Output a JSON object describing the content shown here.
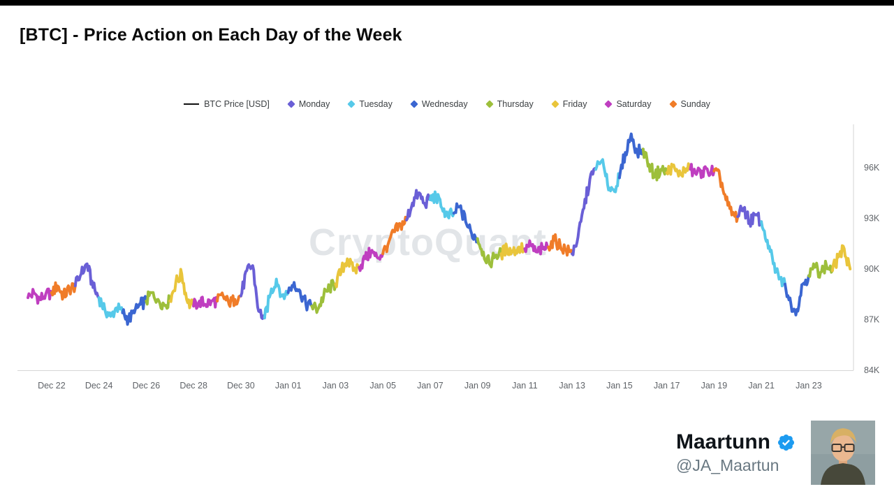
{
  "title": "[BTC] - Price Action on Each Day of the Week",
  "legend": {
    "price_label": "BTC Price [USD]",
    "price_line_color": "#111111",
    "days": [
      {
        "label": "Monday",
        "color": "#6A5FD6"
      },
      {
        "label": "Tuesday",
        "color": "#56C9E9"
      },
      {
        "label": "Wednesday",
        "color": "#3B66D1"
      },
      {
        "label": "Thursday",
        "color": "#9DBF3B"
      },
      {
        "label": "Friday",
        "color": "#E9C53B"
      },
      {
        "label": "Saturday",
        "color": "#BF3EC0"
      },
      {
        "label": "Sunday",
        "color": "#F07C28"
      }
    ]
  },
  "watermark": "CryptoQuant",
  "attribution": {
    "name": "Maartunn",
    "handle": "@JA_Maartun",
    "verified_color": "#1d9bf0"
  },
  "chart_data": {
    "type": "line",
    "title": "[BTC] - Price Action on Each Day of the Week",
    "ylabel": "BTC Price [USD]",
    "unit": "USD (thousands)",
    "ylim": [
      84,
      99
    ],
    "grid": false,
    "legend_position": "top",
    "noise_amplitude": 0.38,
    "y_ticks": [
      {
        "label": "96K",
        "value": 96
      },
      {
        "label": "93K",
        "value": 93
      },
      {
        "label": "90K",
        "value": 90
      },
      {
        "label": "87K",
        "value": 87
      },
      {
        "label": "84K",
        "value": 84
      }
    ],
    "x_ticks": [
      {
        "label": "Dec 22",
        "day_index": 1
      },
      {
        "label": "Dec 24",
        "day_index": 3
      },
      {
        "label": "Dec 26",
        "day_index": 5
      },
      {
        "label": "Dec 28",
        "day_index": 7
      },
      {
        "label": "Dec 30",
        "day_index": 9
      },
      {
        "label": "Jan 01",
        "day_index": 11
      },
      {
        "label": "Jan 03",
        "day_index": 13
      },
      {
        "label": "Jan 05",
        "day_index": 15
      },
      {
        "label": "Jan 07",
        "day_index": 17
      },
      {
        "label": "Jan 09",
        "day_index": 19
      },
      {
        "label": "Jan 11",
        "day_index": 21
      },
      {
        "label": "Jan 13",
        "day_index": 23
      },
      {
        "label": "Jan 15",
        "day_index": 25
      },
      {
        "label": "Jan 17",
        "day_index": 27
      },
      {
        "label": "Jan 19",
        "day_index": 29
      },
      {
        "label": "Jan 21",
        "day_index": 31
      },
      {
        "label": "Jan 23",
        "day_index": 33
      }
    ],
    "points_per_day_hours": [
      0,
      6,
      12,
      18
    ],
    "days": [
      {
        "date": "Dec 21",
        "dow": "Saturday",
        "values": [
          88.3,
          88.6,
          88.2,
          88.5
        ]
      },
      {
        "date": "Dec 22",
        "dow": "Sunday",
        "values": [
          88.6,
          89.0,
          88.4,
          88.8
        ]
      },
      {
        "date": "Dec 23",
        "dow": "Monday",
        "values": [
          89.0,
          89.7,
          90.3,
          88.9
        ]
      },
      {
        "date": "Dec 24",
        "dow": "Tuesday",
        "values": [
          88.3,
          87.6,
          87.2,
          87.7
        ]
      },
      {
        "date": "Dec 25",
        "dow": "Wednesday",
        "values": [
          87.4,
          87.0,
          87.4,
          87.9
        ]
      },
      {
        "date": "Dec 26",
        "dow": "Thursday",
        "values": [
          88.1,
          88.6,
          88.2,
          87.9
        ]
      },
      {
        "date": "Dec 27",
        "dow": "Friday",
        "values": [
          88.1,
          89.2,
          89.7,
          88.0
        ]
      },
      {
        "date": "Dec 28",
        "dow": "Saturday",
        "values": [
          87.8,
          88.1,
          87.9,
          88.1
        ]
      },
      {
        "date": "Dec 29",
        "dow": "Sunday",
        "values": [
          88.1,
          88.4,
          87.9,
          88.2
        ]
      },
      {
        "date": "Dec 30",
        "dow": "Monday",
        "values": [
          88.4,
          89.9,
          90.2,
          87.5
        ]
      },
      {
        "date": "Dec 31",
        "dow": "Tuesday",
        "values": [
          87.1,
          88.5,
          89.4,
          88.4
        ]
      },
      {
        "date": "Jan 01",
        "dow": "Wednesday",
        "values": [
          88.6,
          89.2,
          88.7,
          87.9
        ]
      },
      {
        "date": "Jan 02",
        "dow": "Thursday",
        "values": [
          87.8,
          87.6,
          88.4,
          88.9
        ]
      },
      {
        "date": "Jan 03",
        "dow": "Friday",
        "values": [
          89.1,
          89.9,
          90.6,
          89.9
        ]
      },
      {
        "date": "Jan 04",
        "dow": "Saturday",
        "values": [
          90.1,
          90.6,
          91.0,
          90.7
        ]
      },
      {
        "date": "Jan 05",
        "dow": "Sunday",
        "values": [
          90.9,
          91.6,
          92.2,
          92.6
        ]
      },
      {
        "date": "Jan 06",
        "dow": "Monday",
        "values": [
          92.9,
          93.9,
          94.5,
          93.9
        ]
      },
      {
        "date": "Jan 07",
        "dow": "Tuesday",
        "values": [
          94.1,
          94.3,
          93.6,
          93.1
        ]
      },
      {
        "date": "Jan 08",
        "dow": "Wednesday",
        "values": [
          93.3,
          93.7,
          92.8,
          92.1
        ]
      },
      {
        "date": "Jan 09",
        "dow": "Thursday",
        "values": [
          91.8,
          91.0,
          90.3,
          90.8
        ]
      },
      {
        "date": "Jan 10",
        "dow": "Friday",
        "values": [
          90.9,
          91.2,
          91.0,
          91.3
        ]
      },
      {
        "date": "Jan 11",
        "dow": "Saturday",
        "values": [
          91.2,
          91.4,
          91.0,
          91.2
        ]
      },
      {
        "date": "Jan 12",
        "dow": "Sunday",
        "values": [
          91.3,
          91.7,
          91.4,
          91.1
        ]
      },
      {
        "date": "Jan 13",
        "dow": "Monday",
        "values": [
          90.9,
          91.9,
          93.6,
          95.3
        ]
      },
      {
        "date": "Jan 14",
        "dow": "Tuesday",
        "values": [
          95.9,
          96.4,
          95.0,
          94.7
        ]
      },
      {
        "date": "Jan 15",
        "dow": "Wednesday",
        "values": [
          95.4,
          96.9,
          98.0,
          96.9
        ]
      },
      {
        "date": "Jan 16",
        "dow": "Thursday",
        "values": [
          97.1,
          96.2,
          95.5,
          95.9
        ]
      },
      {
        "date": "Jan 17",
        "dow": "Friday",
        "values": [
          95.7,
          96.1,
          95.5,
          95.9
        ]
      },
      {
        "date": "Jan 18",
        "dow": "Saturday",
        "values": [
          95.9,
          95.6,
          95.8,
          95.7
        ]
      },
      {
        "date": "Jan 19",
        "dow": "Sunday",
        "values": [
          95.8,
          95.4,
          94.1,
          93.2
        ]
      },
      {
        "date": "Jan 20",
        "dow": "Monday",
        "values": [
          93.1,
          93.6,
          92.8,
          93.2
        ]
      },
      {
        "date": "Jan 21",
        "dow": "Tuesday",
        "values": [
          92.8,
          91.7,
          90.3,
          89.4
        ]
      },
      {
        "date": "Jan 22",
        "dow": "Wednesday",
        "values": [
          89.1,
          87.9,
          87.6,
          89.1
        ]
      },
      {
        "date": "Jan 23",
        "dow": "Thursday",
        "values": [
          89.6,
          90.1,
          89.8,
          90.2
        ]
      },
      {
        "date": "Jan 24",
        "dow": "Friday",
        "values": [
          89.9,
          90.7,
          91.2,
          90.0
        ]
      }
    ]
  }
}
